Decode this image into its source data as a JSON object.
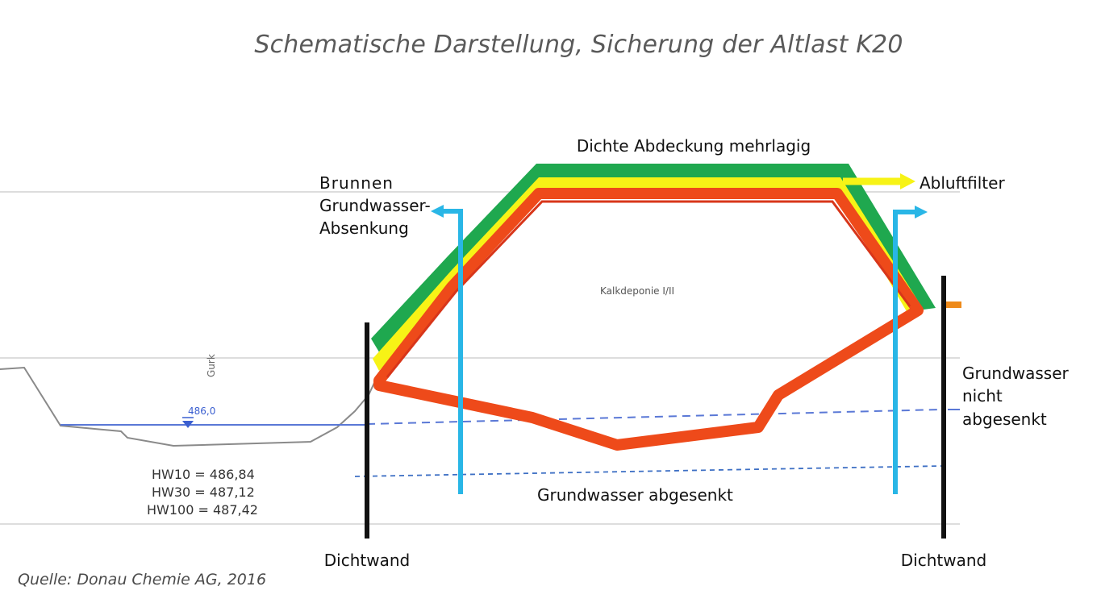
{
  "title": "Schematische Darstellung, Sicherung der Altlast K20",
  "source": "Quelle: Donau Chemie AG, 2016",
  "labels": {
    "cover": "Dichte Abdeckung mehrlagig",
    "exhaust_filter": "Abluftfilter",
    "well_line1": "Brunnen",
    "well_line2": "Grundwasser-",
    "well_line3": "Absenkung",
    "landfill": "Kalkdeponie I/II",
    "river": "Gurk",
    "water_level": "486,0",
    "hw10": "HW10  =  486,84",
    "hw30": "HW30  =  487,12",
    "hw100": "HW100  =  487,42",
    "groundwater_lowered": "Grundwasser  abgesenkt",
    "groundwater_not_lowered_1": "Grundwasser",
    "groundwater_not_lowered_2": "nicht",
    "groundwater_not_lowered_3": "abgesenkt",
    "wall_left": "Dichtwand",
    "wall_right": "Dichtwand"
  },
  "colors": {
    "cover_green": "#1fa84f",
    "cover_yellow": "#f7f316",
    "cover_red": "#ee4a1a",
    "well_blue": "#29b6e6",
    "groundwater_blue": "#5a78d6",
    "wall_black": "#111111",
    "terrain_gray": "#8a8a8a"
  }
}
